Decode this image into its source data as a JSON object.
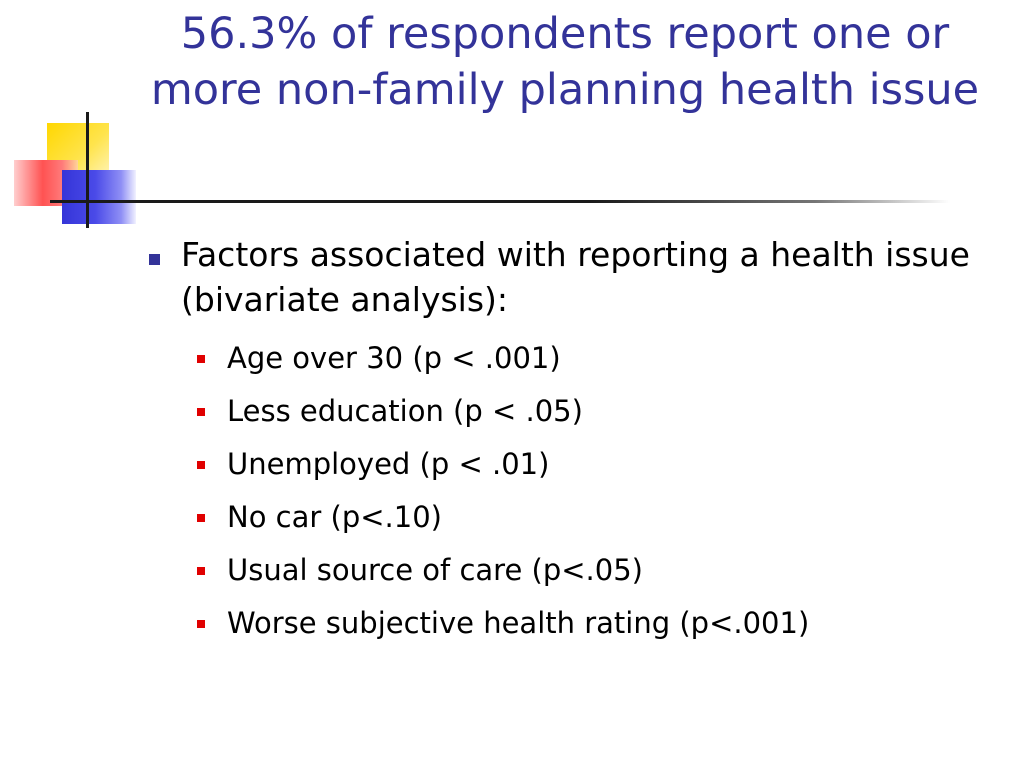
{
  "slide": {
    "title": "56.3% of respondents report one or more non-family planning health issue",
    "bullets": [
      {
        "text": "Factors associated with reporting a health issue (bivariate analysis):",
        "sub": [
          "Age over 30 (p < .001)",
          "Less education (p < .05)",
          "Unemployed (p < .01)",
          "No car (p<.10)",
          "Usual source of care (p<.05)",
          "Worse subjective health rating (p<.001)"
        ]
      }
    ]
  },
  "colors": {
    "title": "#333399",
    "bullet_level1": "#333399",
    "bullet_level2": "#e00000",
    "body_text": "#000000"
  }
}
